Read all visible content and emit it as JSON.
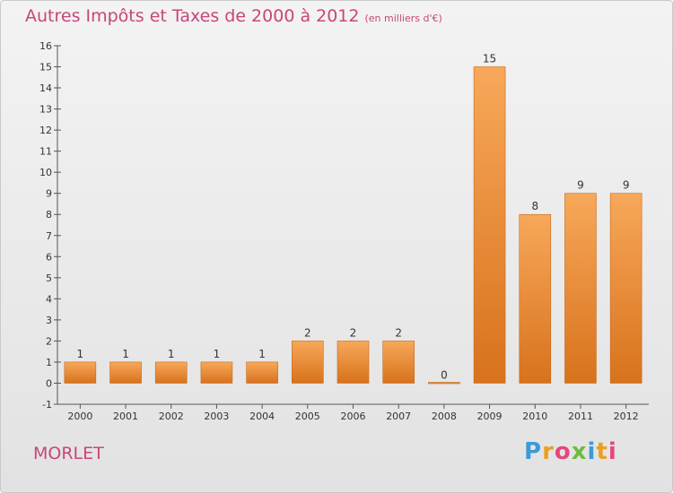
{
  "header": {
    "title": "Autres Impôts et Taxes de 2000 à 2012",
    "unit": "(en milliers d'€)"
  },
  "commune": "MORLET",
  "logo": {
    "text": "Proxiti",
    "letter_colors": [
      "#3b9bd8",
      "#e8a022",
      "#e5487b",
      "#6dbb3c",
      "#3b9bd8",
      "#e8a022",
      "#e5487b"
    ]
  },
  "colors": {
    "bar_top": "#f7a85a",
    "bar_bottom": "#d8721c",
    "bar_edge": "#c86a1e",
    "axis": "#555555",
    "grid": "#dcdcdc",
    "title": "#c8457a"
  },
  "chart_data": {
    "type": "bar",
    "categories": [
      "2000",
      "2001",
      "2002",
      "2003",
      "2004",
      "2005",
      "2006",
      "2007",
      "2008",
      "2009",
      "2010",
      "2011",
      "2012"
    ],
    "values": [
      1,
      1,
      1,
      1,
      1,
      2,
      2,
      2,
      0,
      15,
      8,
      9,
      9
    ],
    "data_labels": [
      "1",
      "1",
      "1",
      "1",
      "1",
      "2",
      "2",
      "2",
      "0",
      "15",
      "8",
      "9",
      "9"
    ],
    "ylim": [
      -1,
      16
    ],
    "yticks": [
      -1,
      0,
      1,
      2,
      3,
      4,
      5,
      6,
      7,
      8,
      9,
      10,
      11,
      12,
      13,
      14,
      15,
      16
    ],
    "grid": false,
    "xlabel": "",
    "ylabel": ""
  }
}
